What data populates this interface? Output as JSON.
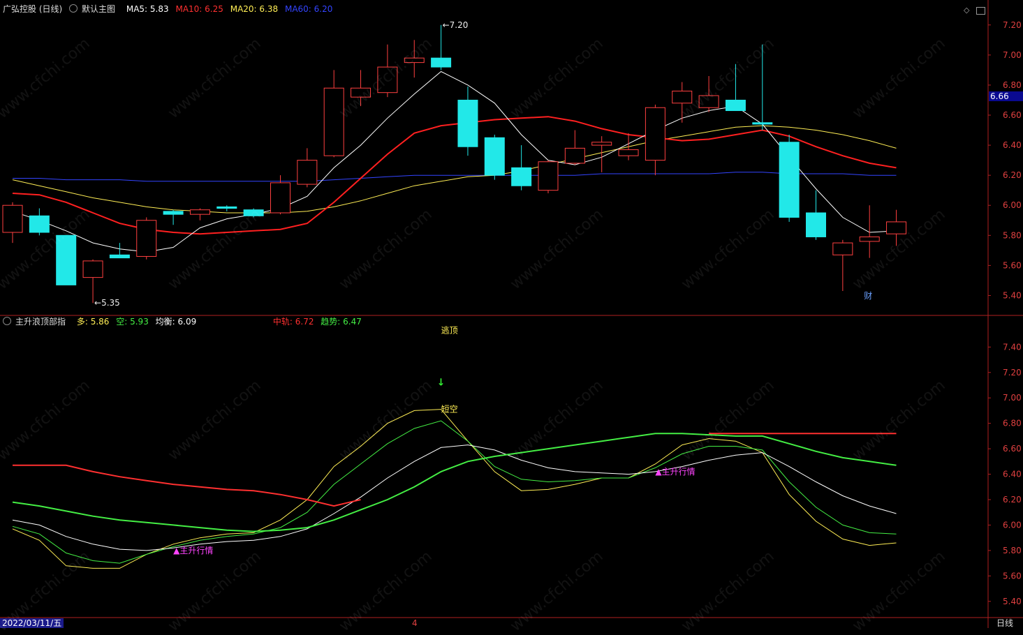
{
  "top_header": {
    "title": "广弘控股 (日线)",
    "template": "默认主图",
    "ma5": {
      "label": "MA5: 5.83",
      "color": "#ffffff"
    },
    "ma10": {
      "label": "MA10: 6.25",
      "color": "#ff3030"
    },
    "ma20": {
      "label": "MA20: 6.38",
      "color": "#ffee55"
    },
    "ma60": {
      "label": "MA60: 6.20",
      "color": "#3344ff"
    }
  },
  "sub_header": {
    "title": "主升浪顶部指",
    "duo": {
      "label": "多: 5.86",
      "color": "#ffee55"
    },
    "kong": {
      "label": "空: 5.93",
      "color": "#44ee44"
    },
    "junheng": {
      "label": "均衡: 6.09",
      "color": "#ffffff"
    },
    "zhonggui": {
      "label": "中轨: 6.72",
      "color": "#ff3030"
    },
    "qushi": {
      "label": "趋势: 6.47",
      "color": "#44ee44"
    }
  },
  "price_badge": "6.66",
  "footer": {
    "date": "2022/03/11/五",
    "period": "日线",
    "month_marker": "4"
  },
  "watermark": "www.cfchi.com",
  "chart_data": [
    {
      "type": "candlestick",
      "name": "main",
      "ylim": [
        5.3,
        7.25
      ],
      "yticks": [
        "7.20",
        "7.00",
        "6.80",
        "6.60",
        "6.40",
        "6.20",
        "6.00",
        "5.80",
        "5.60",
        "5.40"
      ],
      "candles": [
        {
          "o": 5.82,
          "h": 6.02,
          "l": 5.75,
          "c": 6.0
        },
        {
          "o": 5.93,
          "h": 5.98,
          "l": 5.8,
          "c": 5.82
        },
        {
          "o": 5.8,
          "h": 5.8,
          "l": 5.47,
          "c": 5.47
        },
        {
          "o": 5.52,
          "h": 5.64,
          "l": 5.35,
          "c": 5.63
        },
        {
          "o": 5.67,
          "h": 5.75,
          "l": 5.65,
          "c": 5.65
        },
        {
          "o": 5.66,
          "h": 5.92,
          "l": 5.64,
          "c": 5.9
        },
        {
          "o": 5.96,
          "h": 5.97,
          "l": 5.87,
          "c": 5.94
        },
        {
          "o": 5.94,
          "h": 5.98,
          "l": 5.9,
          "c": 5.97
        },
        {
          "o": 5.99,
          "h": 6.0,
          "l": 5.96,
          "c": 5.98
        },
        {
          "o": 5.97,
          "h": 5.98,
          "l": 5.92,
          "c": 5.93
        },
        {
          "o": 5.95,
          "h": 6.2,
          "l": 5.94,
          "c": 6.15
        },
        {
          "o": 6.14,
          "h": 6.38,
          "l": 6.12,
          "c": 6.3
        },
        {
          "o": 6.33,
          "h": 6.9,
          "l": 6.32,
          "c": 6.78
        },
        {
          "o": 6.72,
          "h": 6.9,
          "l": 6.66,
          "c": 6.78
        },
        {
          "o": 6.75,
          "h": 7.07,
          "l": 6.72,
          "c": 6.92
        },
        {
          "o": 6.95,
          "h": 7.1,
          "l": 6.85,
          "c": 6.98
        },
        {
          "o": 6.98,
          "h": 7.2,
          "l": 6.9,
          "c": 6.92
        },
        {
          "o": 6.7,
          "h": 6.79,
          "l": 6.33,
          "c": 6.39
        },
        {
          "o": 6.45,
          "h": 6.47,
          "l": 6.17,
          "c": 6.2
        },
        {
          "o": 6.25,
          "h": 6.4,
          "l": 6.1,
          "c": 6.13
        },
        {
          "o": 6.1,
          "h": 6.3,
          "l": 6.08,
          "c": 6.29
        },
        {
          "o": 6.28,
          "h": 6.5,
          "l": 6.27,
          "c": 6.38
        },
        {
          "o": 6.4,
          "h": 6.46,
          "l": 6.22,
          "c": 6.42
        },
        {
          "o": 6.33,
          "h": 6.48,
          "l": 6.3,
          "c": 6.37
        },
        {
          "o": 6.3,
          "h": 6.67,
          "l": 6.2,
          "c": 6.65
        },
        {
          "o": 6.68,
          "h": 6.82,
          "l": 6.55,
          "c": 6.76
        },
        {
          "o": 6.65,
          "h": 6.86,
          "l": 6.62,
          "c": 6.73
        },
        {
          "o": 6.7,
          "h": 6.94,
          "l": 6.63,
          "c": 6.63
        },
        {
          "o": 6.55,
          "h": 7.07,
          "l": 6.5,
          "c": 6.54
        },
        {
          "o": 6.42,
          "h": 6.47,
          "l": 5.89,
          "c": 5.92
        },
        {
          "o": 5.95,
          "h": 6.1,
          "l": 5.77,
          "c": 5.79
        },
        {
          "o": 5.67,
          "h": 5.77,
          "l": 5.43,
          "c": 5.75
        },
        {
          "o": 5.76,
          "h": 6.0,
          "l": 5.65,
          "c": 5.79
        },
        {
          "o": 5.81,
          "h": 5.97,
          "l": 5.73,
          "c": 5.89
        }
      ],
      "ma5": [
        5.96,
        5.9,
        5.83,
        5.75,
        5.71,
        5.69,
        5.72,
        5.85,
        5.91,
        5.94,
        5.98,
        6.06,
        6.25,
        6.4,
        6.58,
        6.74,
        6.89,
        6.8,
        6.68,
        6.47,
        6.3,
        6.27,
        6.32,
        6.41,
        6.5,
        6.58,
        6.63,
        6.66,
        6.54,
        6.32,
        6.11,
        5.92,
        5.82,
        5.83
      ],
      "ma10": [
        6.08,
        6.07,
        6.02,
        5.95,
        5.88,
        5.84,
        5.82,
        5.81,
        5.82,
        5.83,
        5.84,
        5.88,
        6.02,
        6.18,
        6.34,
        6.48,
        6.53,
        6.55,
        6.57,
        6.58,
        6.59,
        6.56,
        6.51,
        6.47,
        6.45,
        6.43,
        6.44,
        6.47,
        6.5,
        6.46,
        6.39,
        6.33,
        6.28,
        6.25
      ],
      "ma20": [
        6.17,
        6.13,
        6.09,
        6.05,
        6.02,
        5.99,
        5.97,
        5.96,
        5.95,
        5.95,
        5.95,
        5.96,
        5.99,
        6.03,
        6.08,
        6.13,
        6.16,
        6.19,
        6.2,
        6.23,
        6.27,
        6.31,
        6.35,
        6.39,
        6.43,
        6.46,
        6.49,
        6.52,
        6.53,
        6.52,
        6.5,
        6.47,
        6.43,
        6.38
      ],
      "ma60": [
        6.18,
        6.18,
        6.17,
        6.17,
        6.17,
        6.16,
        6.16,
        6.16,
        6.16,
        6.16,
        6.16,
        6.16,
        6.17,
        6.18,
        6.19,
        6.2,
        6.2,
        6.2,
        6.2,
        6.2,
        6.2,
        6.2,
        6.21,
        6.21,
        6.21,
        6.21,
        6.21,
        6.22,
        6.22,
        6.21,
        6.21,
        6.21,
        6.2,
        6.2
      ],
      "annotations": [
        {
          "index": 16,
          "value": 7.2,
          "text": "7.20",
          "side": "right"
        },
        {
          "index": 3,
          "value": 5.35,
          "text": "←5.35",
          "side": "right"
        },
        {
          "index": 32,
          "value": 5.38,
          "text": "财",
          "side": "center"
        }
      ]
    },
    {
      "type": "line",
      "name": "indicator",
      "ylim": [
        5.3,
        7.55
      ],
      "yticks": [
        "7.40",
        "7.20",
        "7.00",
        "6.80",
        "6.60",
        "6.40",
        "6.20",
        "6.00",
        "5.80",
        "5.60",
        "5.40"
      ],
      "series": [
        {
          "key": "duo",
          "color": "#ffee55",
          "width": 1,
          "values": [
            5.97,
            5.88,
            5.68,
            5.66,
            5.66,
            5.77,
            5.85,
            5.9,
            5.93,
            5.94,
            6.04,
            6.2,
            6.46,
            6.62,
            6.8,
            6.9,
            6.91,
            6.66,
            6.42,
            6.27,
            6.28,
            6.32,
            6.37,
            6.37,
            6.48,
            6.63,
            6.68,
            6.66,
            6.57,
            6.24,
            6.03,
            5.89,
            5.84,
            5.86
          ]
        },
        {
          "key": "kong",
          "color": "#44ee44",
          "width": 1,
          "values": [
            5.99,
            5.93,
            5.78,
            5.72,
            5.7,
            5.77,
            5.83,
            5.88,
            5.91,
            5.93,
            5.98,
            6.1,
            6.32,
            6.48,
            6.64,
            6.76,
            6.82,
            6.66,
            6.46,
            6.36,
            6.34,
            6.35,
            6.37,
            6.37,
            6.45,
            6.56,
            6.62,
            6.62,
            6.59,
            6.34,
            6.14,
            6.0,
            5.94,
            5.93
          ]
        },
        {
          "key": "junheng",
          "color": "#ffffff",
          "width": 1,
          "values": [
            6.04,
            6.0,
            5.91,
            5.85,
            5.81,
            5.8,
            5.82,
            5.85,
            5.87,
            5.88,
            5.91,
            5.97,
            6.09,
            6.22,
            6.37,
            6.5,
            6.61,
            6.63,
            6.59,
            6.51,
            6.45,
            6.42,
            6.41,
            6.4,
            6.42,
            6.46,
            6.51,
            6.55,
            6.57,
            6.46,
            6.34,
            6.23,
            6.15,
            6.09
          ]
        },
        {
          "key": "zhonggui",
          "color": "#ff3030",
          "width": 2,
          "values": [
            6.47,
            6.47,
            6.47,
            6.42,
            6.38,
            6.35,
            6.32,
            6.3,
            6.28,
            6.27,
            6.24,
            6.2,
            6.15,
            6.2,
            null,
            null,
            null,
            null,
            null,
            null,
            null,
            null,
            null,
            null,
            null,
            null,
            6.72,
            6.72,
            6.72,
            6.72,
            6.72,
            6.72,
            6.72,
            6.72
          ]
        },
        {
          "key": "qushi",
          "color": "#44ee44",
          "width": 2,
          "values": [
            6.18,
            6.15,
            6.11,
            6.07,
            6.04,
            6.02,
            6.0,
            5.98,
            5.96,
            5.95,
            5.96,
            5.98,
            6.04,
            6.12,
            6.2,
            6.3,
            6.42,
            6.5,
            6.54,
            6.57,
            6.6,
            6.63,
            6.66,
            6.69,
            6.72,
            6.72,
            6.71,
            6.7,
            6.7,
            6.64,
            6.58,
            6.53,
            6.5,
            6.47
          ]
        }
      ],
      "annotations": [
        {
          "index": 16,
          "value": 7.53,
          "text": "逃顶",
          "color": "#ffee55"
        },
        {
          "index": 16,
          "value": 7.12,
          "text": "↓",
          "color": "#33ee33"
        },
        {
          "index": 16,
          "value": 6.91,
          "text": "短空",
          "color": "#ffee55"
        },
        {
          "index": 6,
          "value": 5.8,
          "text": "▲主升行情",
          "color": "#ff44ff"
        },
        {
          "index": 24,
          "value": 6.42,
          "text": "▲主升行情",
          "color": "#ff44ff"
        }
      ]
    }
  ]
}
